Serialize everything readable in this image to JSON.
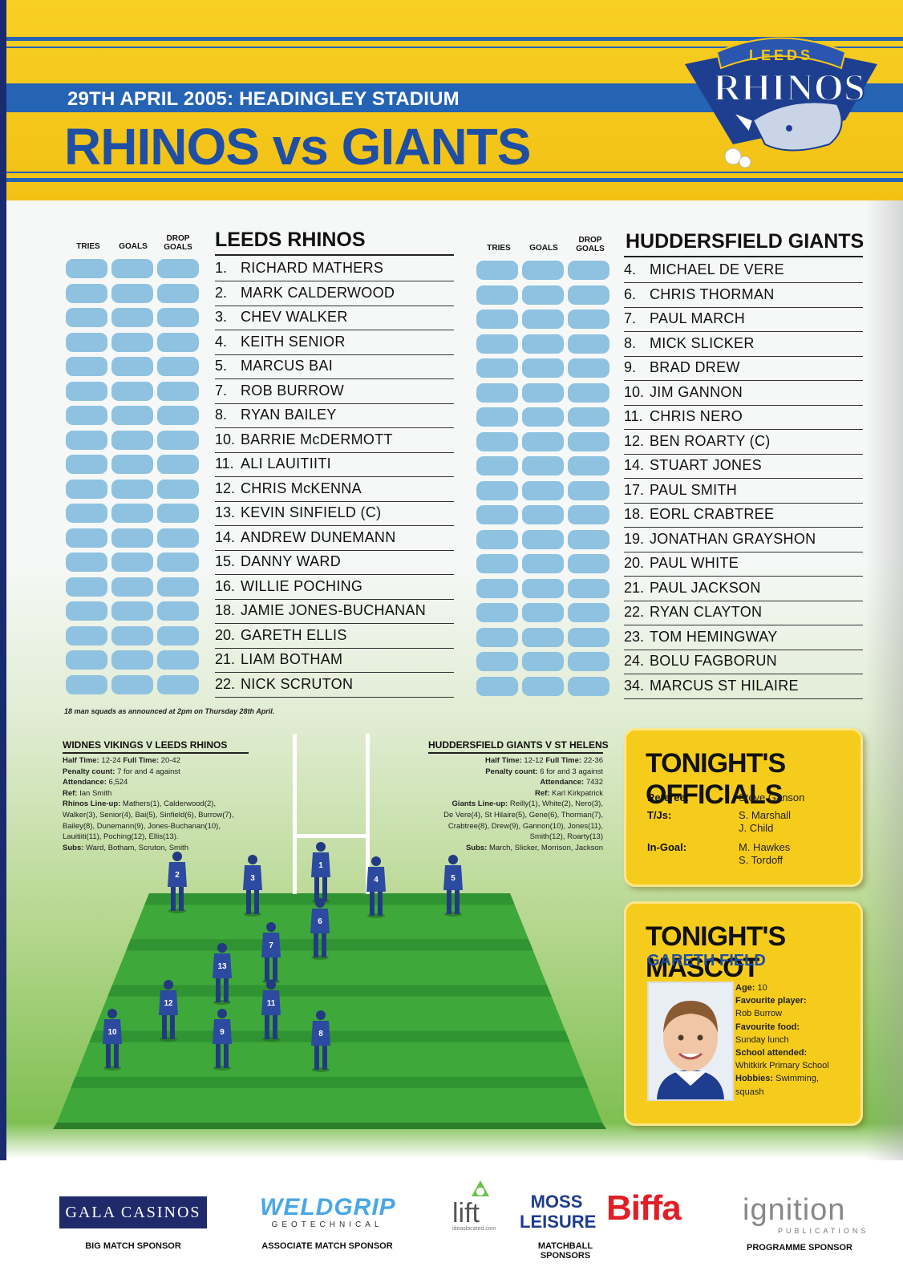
{
  "header": {
    "date": "29TH APRIL 2005: HEADINGLEY STADIUM",
    "title": "RHINOS vs GIANTS",
    "logo_top": "LEEDS",
    "logo_main": "RHINOS"
  },
  "columns": {
    "tries": "TRIES",
    "goals": "GOALS",
    "drop_goals_1": "DROP",
    "drop_goals_2": "GOALS"
  },
  "home": {
    "name": "LEEDS RHINOS",
    "players": [
      {
        "num": "1.",
        "name": "RICHARD MATHERS"
      },
      {
        "num": "2.",
        "name": "MARK CALDERWOOD"
      },
      {
        "num": "3.",
        "name": "CHEV WALKER"
      },
      {
        "num": "4.",
        "name": "KEITH SENIOR"
      },
      {
        "num": "5.",
        "name": "MARCUS BAI"
      },
      {
        "num": "7.",
        "name": "ROB BURROW"
      },
      {
        "num": "8.",
        "name": "RYAN BAILEY"
      },
      {
        "num": "10.",
        "name": "BARRIE McDERMOTT"
      },
      {
        "num": "11.",
        "name": "ALI LAUITIITI"
      },
      {
        "num": "12.",
        "name": "CHRIS McKENNA"
      },
      {
        "num": "13.",
        "name": "KEVIN SINFIELD (C)"
      },
      {
        "num": "14.",
        "name": "ANDREW DUNEMANN"
      },
      {
        "num": "15.",
        "name": "DANNY WARD"
      },
      {
        "num": "16.",
        "name": "WILLIE POCHING"
      },
      {
        "num": "18.",
        "name": "JAMIE JONES-BUCHANAN"
      },
      {
        "num": "20.",
        "name": "GARETH ELLIS"
      },
      {
        "num": "21.",
        "name": "LIAM BOTHAM"
      },
      {
        "num": "22.",
        "name": "NICK SCRUTON"
      }
    ]
  },
  "away": {
    "name": "HUDDERSFIELD GIANTS",
    "players": [
      {
        "num": "4.",
        "name": "MICHAEL DE VERE"
      },
      {
        "num": "6.",
        "name": "CHRIS THORMAN"
      },
      {
        "num": "7.",
        "name": "PAUL MARCH"
      },
      {
        "num": "8.",
        "name": "MICK SLICKER"
      },
      {
        "num": "9.",
        "name": "BRAD DREW"
      },
      {
        "num": "10.",
        "name": "JIM GANNON"
      },
      {
        "num": "11.",
        "name": "CHRIS NERO"
      },
      {
        "num": "12.",
        "name": "BEN ROARTY (C)"
      },
      {
        "num": "14.",
        "name": "STUART JONES"
      },
      {
        "num": "17.",
        "name": "PAUL SMITH"
      },
      {
        "num": "18.",
        "name": "EORL CRABTREE"
      },
      {
        "num": "19.",
        "name": "JONATHAN GRAYSHON"
      },
      {
        "num": "20.",
        "name": "PAUL WHITE"
      },
      {
        "num": "21.",
        "name": "PAUL JACKSON"
      },
      {
        "num": "22.",
        "name": "RYAN CLAYTON"
      },
      {
        "num": "23.",
        "name": "TOM HEMINGWAY"
      },
      {
        "num": "24.",
        "name": "BOLU FAGBORUN"
      },
      {
        "num": "34.",
        "name": "MARCUS ST HILAIRE"
      }
    ]
  },
  "squad_note": "18 man squads as announced at 2pm on Thursday 28th April.",
  "last_match_left": {
    "heading": "WIDNES VIKINGS V LEEDS RHINOS",
    "lines": [
      "<b>Half Time:</b> 12-24 <b>Full Time:</b> 20-42",
      "<b>Penalty count:</b> 7 for and 4 against",
      "<b>Attendance:</b> 6,524",
      "<b>Ref:</b> Ian Smith",
      "<b>Rhinos Line-up:</b> Mathers(1), Calderwood(2),",
      "Walker(3), Senior(4), Bai(5), Sinfield(6), Burrow(7),",
      "Bailey(8), Dunemann(9), Jones-Buchanan(10),",
      "Lauitiiti(11), Poching(12), Ellis(13).",
      "<b>Subs:</b> Ward, Botham, Scruton, Smith"
    ]
  },
  "last_match_right": {
    "heading": "HUDDERSFIELD GIANTS V ST HELENS",
    "lines": [
      "<b>Half Time:</b> 12-12 <b>Full Time:</b> 22-36",
      "<b>Penalty count:</b> 6 for and 3 against",
      "<b>Attendance:</b> 7432",
      "<b>Ref:</b> Karl Kirkpatrick",
      "<b>Giants Line-up:</b> Reilly(1), White(2), Nero(3),",
      "De Vere(4), St Hilaire(5), Gene(6), Thorman(7),",
      "Crabtree(8), Drew(9), Gannon(10), Jones(11),",
      "Smith(12), Roarty(13)",
      "<b>Subs:</b> March, Slicker, Morrison, Jackson"
    ]
  },
  "officials": {
    "title": "TONIGHT'S OFFICIALS",
    "referee_label": "Referee:",
    "referee": "Steve Ganson",
    "tj_label": "T/Js:",
    "tj1": "S. Marshall",
    "tj2": "J. Child",
    "ingoal_label": "In-Goal:",
    "ingoal1": "M. Hawkes",
    "ingoal2": "S. Tordoff"
  },
  "mascot": {
    "title": "TONIGHT'S MASCOT",
    "name": "GARETH FIELD",
    "lines": [
      "<b>Age:</b> 10",
      "<b>Favourite player:</b>",
      "Rob Burrow",
      "<b>Favourite food:</b>",
      "Sunday lunch",
      "<b>School attended:</b>",
      "Whitkirk Primary School",
      "<b>Hobbies:</b> Swimming,",
      "squash"
    ]
  },
  "positions": [
    "1",
    "2",
    "3",
    "4",
    "5",
    "6",
    "7",
    "8",
    "9",
    "10",
    "11",
    "12",
    "13"
  ],
  "sponsors": {
    "gala": "GALA CASINOS",
    "gala_caption": "BIG MATCH SPONSOR",
    "weldgrip": "WELDGRIP",
    "weldgrip_sub": "GEOTECHNICAL",
    "weldgrip_caption": "ASSOCIATE MATCH SPONSOR",
    "lift": "lift",
    "lift_sub": "ideaslocated.com",
    "moss1": "MOSS",
    "moss2": "LEISURE",
    "biffa": "Biffa",
    "matchball_caption": "MATCHBALL SPONSORS",
    "ignition": "ignition",
    "ignition_sub": "PUBLICATIONS",
    "programme_caption": "PROGRAMME SPONSOR"
  }
}
